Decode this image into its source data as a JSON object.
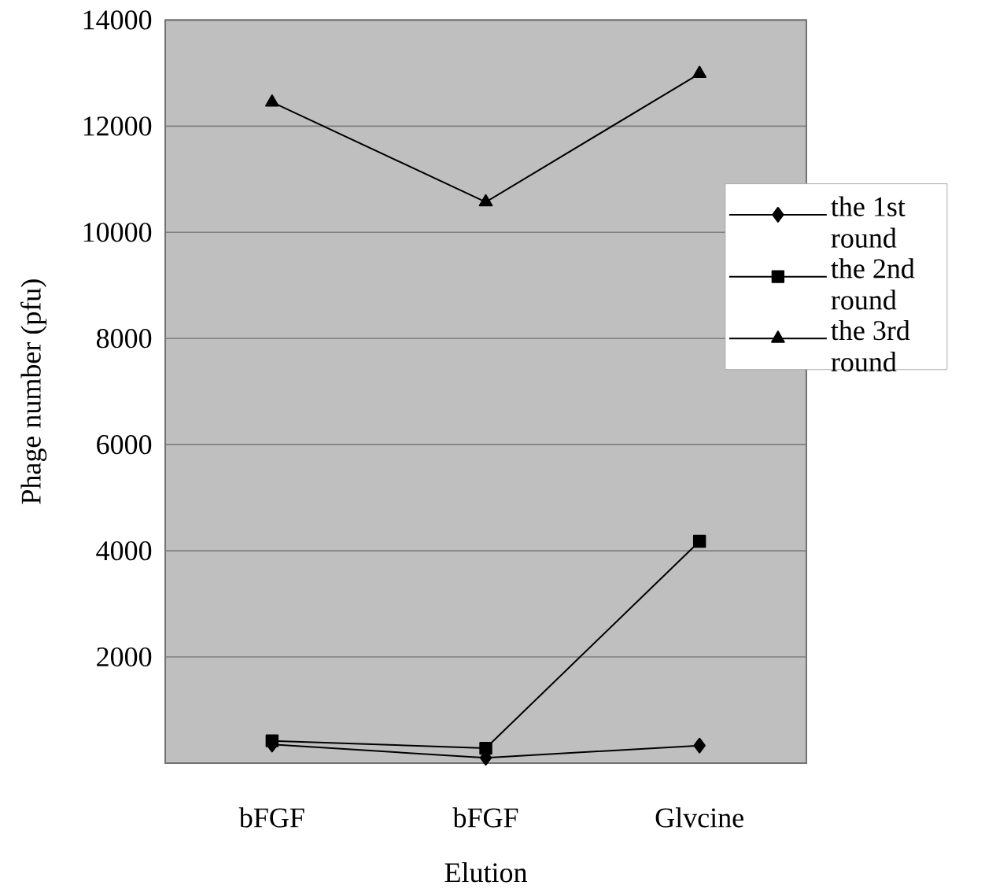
{
  "chart_data": {
    "type": "line",
    "xlabel": "Elution",
    "ylabel": "Phage number (pfu)",
    "categories": [
      "bFGF",
      "bFGF",
      "Glvcine"
    ],
    "series": [
      {
        "name": "the 1st round",
        "color": "#000000",
        "marker": "diamond",
        "values": [
          350,
          100,
          330
        ]
      },
      {
        "name": "the 2nd round",
        "color": "#000000",
        "marker": "square",
        "values": [
          420,
          280,
          4180
        ]
      },
      {
        "name": "the 3rd round",
        "color": "#000000",
        "marker": "triangle",
        "values": [
          12450,
          10570,
          12990
        ]
      }
    ],
    "ylim": [
      0,
      14000
    ],
    "yticks": [
      2000,
      4000,
      6000,
      8000,
      10000,
      12000,
      14000
    ],
    "grid": "y",
    "legend": "right",
    "line_style": "solid"
  }
}
